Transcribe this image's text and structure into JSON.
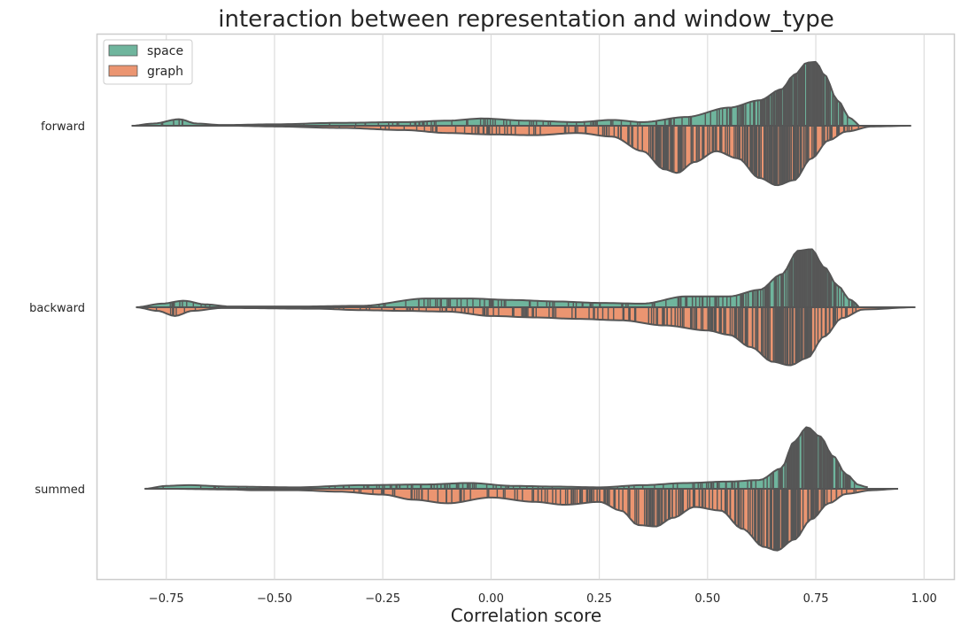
{
  "chart_data": {
    "type": "violin",
    "title": "interaction between representation and window_type",
    "xlabel": "Correlation score",
    "ylabel": "",
    "xlim": [
      -0.91,
      1.07
    ],
    "xticks": [
      -0.75,
      -0.5,
      -0.25,
      0.0,
      0.25,
      0.5,
      0.75,
      1.0
    ],
    "xtick_labels": [
      "−0.75",
      "−0.50",
      "−0.25",
      "0.00",
      "0.25",
      "0.50",
      "0.75",
      "1.00"
    ],
    "grid": "vertical",
    "legend_position": "top-left",
    "categories": [
      "forward",
      "backward",
      "summed"
    ],
    "series": [
      {
        "name": "space",
        "color": "#6fb59d",
        "side": "upper",
        "profiles": [
          {
            "min": -0.83,
            "max": 0.85,
            "density": [
              [
                -0.83,
                0
              ],
              [
                -0.78,
                0.03
              ],
              [
                -0.72,
                0.09
              ],
              [
                -0.68,
                0.03
              ],
              [
                -0.62,
                0.01
              ],
              [
                -0.5,
                0.02
              ],
              [
                -0.35,
                0.04
              ],
              [
                -0.2,
                0.05
              ],
              [
                -0.1,
                0.07
              ],
              [
                -0.02,
                0.1
              ],
              [
                0.08,
                0.07
              ],
              [
                0.2,
                0.05
              ],
              [
                0.28,
                0.08
              ],
              [
                0.35,
                0.05
              ],
              [
                0.45,
                0.12
              ],
              [
                0.55,
                0.25
              ],
              [
                0.62,
                0.35
              ],
              [
                0.67,
                0.5
              ],
              [
                0.7,
                0.7
              ],
              [
                0.73,
                0.87
              ],
              [
                0.75,
                0.88
              ],
              [
                0.77,
                0.7
              ],
              [
                0.8,
                0.35
              ],
              [
                0.83,
                0.1
              ],
              [
                0.85,
                0.02
              ]
            ]
          },
          {
            "min": -0.82,
            "max": 0.85,
            "density": [
              [
                -0.82,
                0
              ],
              [
                -0.76,
                0.05
              ],
              [
                -0.71,
                0.09
              ],
              [
                -0.66,
                0.04
              ],
              [
                -0.6,
                0.01
              ],
              [
                -0.45,
                0.01
              ],
              [
                -0.3,
                0.02
              ],
              [
                -0.15,
                0.12
              ],
              [
                -0.05,
                0.12
              ],
              [
                0.05,
                0.1
              ],
              [
                0.15,
                0.08
              ],
              [
                0.25,
                0.06
              ],
              [
                0.35,
                0.05
              ],
              [
                0.45,
                0.15
              ],
              [
                0.55,
                0.15
              ],
              [
                0.62,
                0.24
              ],
              [
                0.67,
                0.45
              ],
              [
                0.71,
                0.78
              ],
              [
                0.74,
                0.8
              ],
              [
                0.77,
                0.55
              ],
              [
                0.8,
                0.3
              ],
              [
                0.83,
                0.1
              ],
              [
                0.85,
                0.03
              ]
            ]
          },
          {
            "min": -0.8,
            "max": 0.87,
            "density": [
              [
                -0.8,
                0
              ],
              [
                -0.75,
                0.04
              ],
              [
                -0.7,
                0.05
              ],
              [
                -0.6,
                0.03
              ],
              [
                -0.45,
                0.02
              ],
              [
                -0.3,
                0.05
              ],
              [
                -0.15,
                0.06
              ],
              [
                -0.05,
                0.08
              ],
              [
                0.05,
                0.04
              ],
              [
                0.15,
                0.03
              ],
              [
                0.25,
                0.02
              ],
              [
                0.35,
                0.05
              ],
              [
                0.45,
                0.08
              ],
              [
                0.55,
                0.1
              ],
              [
                0.62,
                0.12
              ],
              [
                0.67,
                0.28
              ],
              [
                0.7,
                0.65
              ],
              [
                0.73,
                0.85
              ],
              [
                0.76,
                0.72
              ],
              [
                0.79,
                0.45
              ],
              [
                0.82,
                0.2
              ],
              [
                0.85,
                0.05
              ],
              [
                0.87,
                0.02
              ]
            ]
          }
        ]
      },
      {
        "name": "graph",
        "color": "#eb9571",
        "side": "lower",
        "profiles": [
          {
            "min": -0.6,
            "max": 0.97,
            "density": [
              [
                -0.6,
                0
              ],
              [
                -0.5,
                0.01
              ],
              [
                -0.35,
                0.03
              ],
              [
                -0.2,
                0.06
              ],
              [
                -0.1,
                0.1
              ],
              [
                0,
                0.12
              ],
              [
                0.1,
                0.13
              ],
              [
                0.2,
                0.1
              ],
              [
                0.28,
                0.15
              ],
              [
                0.35,
                0.35
              ],
              [
                0.4,
                0.6
              ],
              [
                0.43,
                0.65
              ],
              [
                0.47,
                0.5
              ],
              [
                0.52,
                0.35
              ],
              [
                0.57,
                0.45
              ],
              [
                0.62,
                0.72
              ],
              [
                0.66,
                0.82
              ],
              [
                0.7,
                0.75
              ],
              [
                0.74,
                0.45
              ],
              [
                0.78,
                0.2
              ],
              [
                0.82,
                0.08
              ],
              [
                0.88,
                0.01
              ],
              [
                0.97,
                0
              ]
            ]
          },
          {
            "min": -0.82,
            "max": 0.98,
            "density": [
              [
                -0.82,
                0
              ],
              [
                -0.77,
                0.05
              ],
              [
                -0.73,
                0.12
              ],
              [
                -0.69,
                0.05
              ],
              [
                -0.62,
                0.01
              ],
              [
                -0.4,
                0.02
              ],
              [
                -0.3,
                0.04
              ],
              [
                -0.2,
                0.05
              ],
              [
                -0.1,
                0.06
              ],
              [
                0,
                0.12
              ],
              [
                0.1,
                0.14
              ],
              [
                0.2,
                0.16
              ],
              [
                0.3,
                0.18
              ],
              [
                0.4,
                0.25
              ],
              [
                0.5,
                0.32
              ],
              [
                0.55,
                0.38
              ],
              [
                0.6,
                0.55
              ],
              [
                0.65,
                0.75
              ],
              [
                0.69,
                0.8
              ],
              [
                0.73,
                0.7
              ],
              [
                0.77,
                0.4
              ],
              [
                0.81,
                0.15
              ],
              [
                0.86,
                0.03
              ],
              [
                0.98,
                0
              ]
            ]
          },
          {
            "min": -0.75,
            "max": 0.94,
            "density": [
              [
                -0.75,
                0
              ],
              [
                -0.6,
                0.01
              ],
              [
                -0.55,
                0.02
              ],
              [
                -0.45,
                0.02
              ],
              [
                -0.35,
                0.04
              ],
              [
                -0.25,
                0.08
              ],
              [
                -0.18,
                0.15
              ],
              [
                -0.1,
                0.2
              ],
              [
                0,
                0.12
              ],
              [
                0.1,
                0.18
              ],
              [
                0.17,
                0.22
              ],
              [
                0.25,
                0.18
              ],
              [
                0.3,
                0.3
              ],
              [
                0.34,
                0.5
              ],
              [
                0.38,
                0.52
              ],
              [
                0.42,
                0.4
              ],
              [
                0.47,
                0.25
              ],
              [
                0.53,
                0.3
              ],
              [
                0.58,
                0.55
              ],
              [
                0.63,
                0.8
              ],
              [
                0.66,
                0.85
              ],
              [
                0.7,
                0.7
              ],
              [
                0.74,
                0.42
              ],
              [
                0.78,
                0.2
              ],
              [
                0.82,
                0.07
              ],
              [
                0.88,
                0.02
              ],
              [
                0.94,
                0
              ]
            ]
          }
        ]
      }
    ]
  }
}
